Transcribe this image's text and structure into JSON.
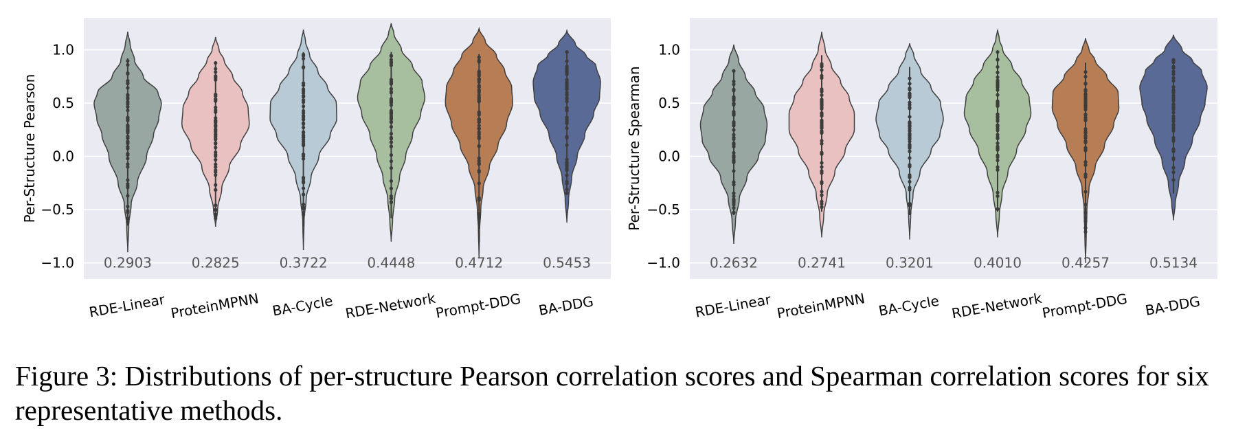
{
  "caption": "Figure 3: Distributions of per-structure Pearson correlation scores and Spearman correlation scores for six representative methods.",
  "colors": {
    "panel_bg": "#eaeaf2",
    "grid": "#ffffff",
    "outline": "#3f3f3f",
    "points": "#3c3c3c",
    "annotation": "#555555",
    "methods": [
      "#98a7a2",
      "#e9c1c0",
      "#b7cad6",
      "#a8bf9f",
      "#b77d55",
      "#5a6a97"
    ]
  },
  "chart_data": [
    {
      "type": "violin",
      "title": "",
      "xlabel": "",
      "ylabel": "Per-Structure Pearson",
      "ylim": [
        -1.15,
        1.3
      ],
      "yticks": [
        -1.0,
        -0.5,
        0.0,
        0.5,
        1.0
      ],
      "ytick_labels": [
        "−1.0",
        "−0.5",
        "0.0",
        "0.5",
        "1.0"
      ],
      "grid": true,
      "categories": [
        "RDE-Linear",
        "ProteinMPNN",
        "BA-Cycle",
        "RDE-Network",
        "Prompt-DDG",
        "BA-DDG"
      ],
      "annotations": [
        "0.2903",
        "0.2825",
        "0.3722",
        "0.4448",
        "0.4712",
        "0.5453"
      ],
      "series": [
        {
          "name": "RDE-Linear",
          "min": -0.9,
          "max": 1.17,
          "median": 0.28,
          "points_min": -0.65,
          "points_max": 0.92,
          "profile": [
            [
              -0.9,
              0.0
            ],
            [
              -0.65,
              0.03
            ],
            [
              -0.45,
              0.1
            ],
            [
              -0.25,
              0.28
            ],
            [
              0.0,
              0.55
            ],
            [
              0.2,
              0.75
            ],
            [
              0.35,
              0.9
            ],
            [
              0.5,
              0.98
            ],
            [
              0.6,
              0.88
            ],
            [
              0.75,
              0.45
            ],
            [
              0.9,
              0.2
            ],
            [
              1.05,
              0.07
            ],
            [
              1.17,
              0.0
            ]
          ]
        },
        {
          "name": "ProteinMPNN",
          "min": -0.66,
          "max": 1.12,
          "median": 0.29,
          "points_min": -0.6,
          "points_max": 0.88,
          "profile": [
            [
              -0.66,
              0.0
            ],
            [
              -0.5,
              0.06
            ],
            [
              -0.3,
              0.18
            ],
            [
              -0.1,
              0.4
            ],
            [
              0.1,
              0.72
            ],
            [
              0.3,
              0.98
            ],
            [
              0.45,
              0.95
            ],
            [
              0.6,
              0.78
            ],
            [
              0.75,
              0.5
            ],
            [
              0.9,
              0.25
            ],
            [
              1.0,
              0.1
            ],
            [
              1.12,
              0.0
            ]
          ]
        },
        {
          "name": "BA-Cycle",
          "min": -0.88,
          "max": 1.19,
          "median": 0.35,
          "points_min": -0.66,
          "points_max": 0.98,
          "profile": [
            [
              -0.88,
              0.0
            ],
            [
              -0.6,
              0.02
            ],
            [
              -0.4,
              0.08
            ],
            [
              -0.2,
              0.22
            ],
            [
              0.0,
              0.45
            ],
            [
              0.2,
              0.78
            ],
            [
              0.35,
              0.97
            ],
            [
              0.5,
              0.96
            ],
            [
              0.65,
              0.7
            ],
            [
              0.8,
              0.42
            ],
            [
              0.95,
              0.18
            ],
            [
              1.08,
              0.06
            ],
            [
              1.19,
              0.0
            ]
          ]
        },
        {
          "name": "RDE-Network",
          "min": -0.8,
          "max": 1.25,
          "median": 0.42,
          "points_min": -0.58,
          "points_max": 0.98,
          "profile": [
            [
              -0.8,
              0.0
            ],
            [
              -0.6,
              0.04
            ],
            [
              -0.4,
              0.1
            ],
            [
              -0.2,
              0.24
            ],
            [
              0.0,
              0.42
            ],
            [
              0.2,
              0.62
            ],
            [
              0.4,
              0.86
            ],
            [
              0.55,
              0.98
            ],
            [
              0.7,
              0.9
            ],
            [
              0.85,
              0.62
            ],
            [
              1.0,
              0.3
            ],
            [
              1.15,
              0.08
            ],
            [
              1.25,
              0.0
            ]
          ]
        },
        {
          "name": "Prompt-DDG",
          "min": -0.95,
          "max": 1.2,
          "median": 0.48,
          "points_min": -0.68,
          "points_max": 0.96,
          "profile": [
            [
              -0.95,
              0.0
            ],
            [
              -0.68,
              0.02
            ],
            [
              -0.5,
              0.05
            ],
            [
              -0.3,
              0.12
            ],
            [
              -0.1,
              0.3
            ],
            [
              0.1,
              0.55
            ],
            [
              0.3,
              0.8
            ],
            [
              0.5,
              0.98
            ],
            [
              0.65,
              0.95
            ],
            [
              0.8,
              0.75
            ],
            [
              0.95,
              0.5
            ],
            [
              1.08,
              0.18
            ],
            [
              1.2,
              0.0
            ]
          ]
        },
        {
          "name": "BA-DDG",
          "min": -0.62,
          "max": 1.18,
          "median": 0.58,
          "points_min": -0.35,
          "points_max": 0.98,
          "profile": [
            [
              -0.62,
              0.0
            ],
            [
              -0.4,
              0.05
            ],
            [
              -0.2,
              0.14
            ],
            [
              0.0,
              0.3
            ],
            [
              0.2,
              0.52
            ],
            [
              0.4,
              0.78
            ],
            [
              0.55,
              0.95
            ],
            [
              0.7,
              0.98
            ],
            [
              0.85,
              0.85
            ],
            [
              0.95,
              0.55
            ],
            [
              1.05,
              0.25
            ],
            [
              1.18,
              0.0
            ]
          ]
        }
      ]
    },
    {
      "type": "violin",
      "title": "",
      "xlabel": "",
      "ylabel": "Per-Structure Spearman",
      "ylim": [
        -1.15,
        1.3
      ],
      "yticks": [
        -1.0,
        -0.5,
        0.0,
        0.5,
        1.0
      ],
      "ytick_labels": [
        "−1.0",
        "−0.5",
        "0.0",
        "0.5",
        "1.0"
      ],
      "grid": true,
      "categories": [
        "RDE-Linear",
        "ProteinMPNN",
        "BA-Cycle",
        "RDE-Network",
        "Prompt-DDG",
        "BA-DDG"
      ],
      "annotations": [
        "0.2632",
        "0.2741",
        "0.3201",
        "0.4010",
        "0.4257",
        "0.5134"
      ],
      "series": [
        {
          "name": "RDE-Linear",
          "min": -0.82,
          "max": 1.05,
          "median": 0.25,
          "points_min": -0.55,
          "points_max": 0.82,
          "profile": [
            [
              -0.82,
              0.0
            ],
            [
              -0.6,
              0.05
            ],
            [
              -0.4,
              0.16
            ],
            [
              -0.2,
              0.38
            ],
            [
              0.0,
              0.72
            ],
            [
              0.15,
              0.92
            ],
            [
              0.3,
              0.97
            ],
            [
              0.45,
              0.88
            ],
            [
              0.6,
              0.62
            ],
            [
              0.75,
              0.34
            ],
            [
              0.9,
              0.14
            ],
            [
              1.05,
              0.0
            ]
          ]
        },
        {
          "name": "ProteinMPNN",
          "min": -0.76,
          "max": 1.17,
          "median": 0.27,
          "points_min": -0.52,
          "points_max": 0.95,
          "profile": [
            [
              -0.76,
              0.0
            ],
            [
              -0.55,
              0.06
            ],
            [
              -0.35,
              0.16
            ],
            [
              -0.15,
              0.38
            ],
            [
              0.05,
              0.68
            ],
            [
              0.25,
              0.95
            ],
            [
              0.4,
              0.95
            ],
            [
              0.55,
              0.8
            ],
            [
              0.7,
              0.55
            ],
            [
              0.85,
              0.28
            ],
            [
              1.0,
              0.1
            ],
            [
              1.17,
              0.0
            ]
          ]
        },
        {
          "name": "BA-Cycle",
          "min": -0.78,
          "max": 1.06,
          "median": 0.3,
          "points_min": -0.55,
          "points_max": 0.84,
          "profile": [
            [
              -0.78,
              0.0
            ],
            [
              -0.55,
              0.03
            ],
            [
              -0.35,
              0.1
            ],
            [
              -0.15,
              0.3
            ],
            [
              0.05,
              0.62
            ],
            [
              0.2,
              0.88
            ],
            [
              0.35,
              0.98
            ],
            [
              0.5,
              0.9
            ],
            [
              0.65,
              0.62
            ],
            [
              0.8,
              0.32
            ],
            [
              0.95,
              0.12
            ],
            [
              1.06,
              0.0
            ]
          ]
        },
        {
          "name": "RDE-Network",
          "min": -0.76,
          "max": 1.19,
          "median": 0.42,
          "points_min": -0.52,
          "points_max": 0.98,
          "profile": [
            [
              -0.76,
              0.0
            ],
            [
              -0.55,
              0.05
            ],
            [
              -0.35,
              0.13
            ],
            [
              -0.15,
              0.3
            ],
            [
              0.05,
              0.55
            ],
            [
              0.25,
              0.82
            ],
            [
              0.4,
              0.97
            ],
            [
              0.55,
              0.92
            ],
            [
              0.7,
              0.7
            ],
            [
              0.85,
              0.42
            ],
            [
              1.0,
              0.15
            ],
            [
              1.1,
              0.05
            ],
            [
              1.19,
              0.0
            ]
          ]
        },
        {
          "name": "Prompt-DDG",
          "min": -1.0,
          "max": 1.11,
          "median": 0.42,
          "points_min": -0.76,
          "points_max": 0.88,
          "profile": [
            [
              -1.0,
              0.0
            ],
            [
              -0.75,
              0.02
            ],
            [
              -0.5,
              0.04
            ],
            [
              -0.3,
              0.1
            ],
            [
              -0.1,
              0.28
            ],
            [
              0.1,
              0.55
            ],
            [
              0.3,
              0.82
            ],
            [
              0.45,
              0.97
            ],
            [
              0.6,
              0.95
            ],
            [
              0.75,
              0.62
            ],
            [
              0.9,
              0.28
            ],
            [
              1.0,
              0.1
            ],
            [
              1.11,
              0.0
            ]
          ]
        },
        {
          "name": "BA-DDG",
          "min": -0.6,
          "max": 1.14,
          "median": 0.55,
          "points_min": -0.35,
          "points_max": 0.92,
          "profile": [
            [
              -0.6,
              0.0
            ],
            [
              -0.45,
              0.05
            ],
            [
              -0.25,
              0.15
            ],
            [
              -0.05,
              0.33
            ],
            [
              0.15,
              0.55
            ],
            [
              0.35,
              0.78
            ],
            [
              0.5,
              0.92
            ],
            [
              0.65,
              0.98
            ],
            [
              0.8,
              0.82
            ],
            [
              0.9,
              0.55
            ],
            [
              1.0,
              0.25
            ],
            [
              1.14,
              0.0
            ]
          ]
        }
      ]
    }
  ]
}
